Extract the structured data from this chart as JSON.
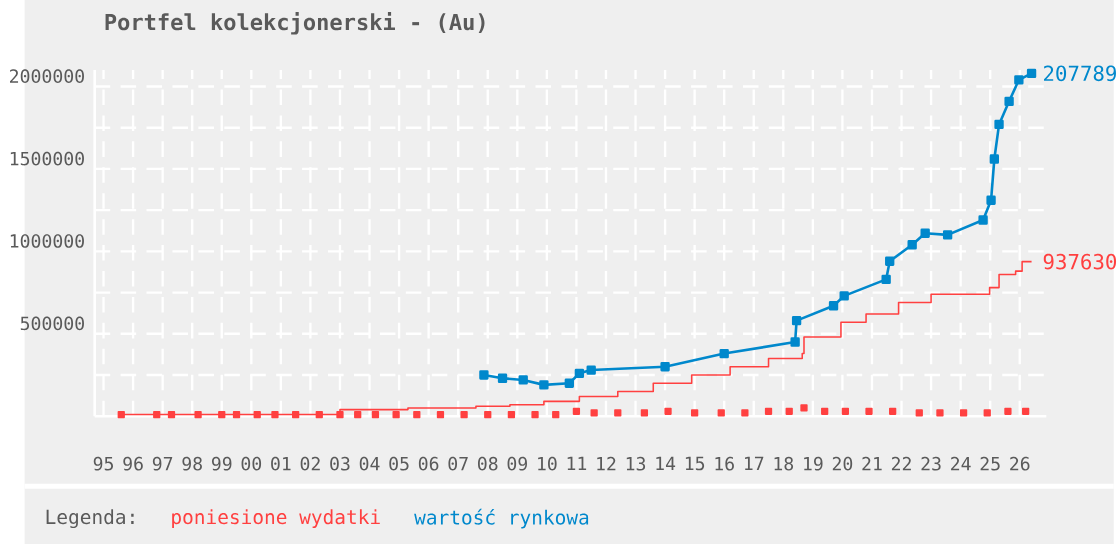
{
  "chart_data": {
    "type": "line",
    "title": "Portfel kolekcjonerski - (Au)",
    "legend_title": "Legenda:",
    "xlim": [
      1994.7,
      2026.9
    ],
    "ylim": [
      0,
      2100000
    ],
    "xticks": [
      {
        "value": 1995,
        "label": "95"
      },
      {
        "value": 1996,
        "label": "96"
      },
      {
        "value": 1997,
        "label": "97"
      },
      {
        "value": 1998,
        "label": "98"
      },
      {
        "value": 1999,
        "label": "99"
      },
      {
        "value": 2000,
        "label": "00"
      },
      {
        "value": 2001,
        "label": "01"
      },
      {
        "value": 2002,
        "label": "02"
      },
      {
        "value": 2003,
        "label": "03"
      },
      {
        "value": 2004,
        "label": "04"
      },
      {
        "value": 2005,
        "label": "05"
      },
      {
        "value": 2006,
        "label": "06"
      },
      {
        "value": 2007,
        "label": "07"
      },
      {
        "value": 2008,
        "label": "08"
      },
      {
        "value": 2009,
        "label": "09"
      },
      {
        "value": 2010,
        "label": "10"
      },
      {
        "value": 2011,
        "label": "11"
      },
      {
        "value": 2012,
        "label": "12"
      },
      {
        "value": 2013,
        "label": "13"
      },
      {
        "value": 2014,
        "label": "14"
      },
      {
        "value": 2015,
        "label": "15"
      },
      {
        "value": 2016,
        "label": "16"
      },
      {
        "value": 2017,
        "label": "17"
      },
      {
        "value": 2018,
        "label": "18"
      },
      {
        "value": 2019,
        "label": "19"
      },
      {
        "value": 2020,
        "label": "20"
      },
      {
        "value": 2021,
        "label": "21"
      },
      {
        "value": 2022,
        "label": "22"
      },
      {
        "value": 2023,
        "label": "23"
      },
      {
        "value": 2024,
        "label": "24"
      },
      {
        "value": 2025,
        "label": "25"
      },
      {
        "value": 2026,
        "label": "26"
      }
    ],
    "yticks": [
      {
        "value": 250000,
        "label": null
      },
      500000,
      {
        "value": 750000,
        "label": null
      },
      1000000,
      {
        "value": 1250000,
        "label": null
      },
      1500000,
      {
        "value": 1750000,
        "label": null
      },
      2000000
    ],
    "grid": true,
    "legend": "bottom",
    "series": [
      {
        "name": "poniesione wydatki",
        "type": "step",
        "marker": "none",
        "color": "#ff4040",
        "x": [
          1995.5,
          2003.0,
          2005.3,
          2007.6,
          2008.75,
          2009.9,
          2011.1,
          2012.4,
          2013.6,
          2014.9,
          2016.2,
          2017.5,
          2018.64,
          2018.7,
          2019.95,
          2020.8,
          2021.9,
          2023.0,
          2024.98,
          2025.3,
          2025.86,
          2026.08,
          2026.4
        ],
        "values": [
          10000,
          40000,
          50000,
          60000,
          70000,
          90000,
          120000,
          150000,
          200000,
          250000,
          300000,
          350000,
          380000,
          480000,
          570000,
          620000,
          690000,
          740000,
          780000,
          860000,
          880000,
          937630,
          937630
        ]
      },
      {
        "name": "wartość rynkowa",
        "marker": "square",
        "color": "#0088cc",
        "x": [
          2007.87,
          2008.5,
          2009.2,
          2009.9,
          2010.76,
          2011.1,
          2011.5,
          2014.0,
          2016.0,
          2018.4,
          2018.45,
          2019.7,
          2020.06,
          2021.48,
          2021.6,
          2022.36,
          2022.8,
          2023.56,
          2024.76,
          2025.03,
          2025.14,
          2025.3,
          2025.64,
          2025.97,
          2026.4
        ],
        "values": [
          250000,
          230000,
          220000,
          190000,
          200000,
          260000,
          280000,
          300000,
          380000,
          450000,
          580000,
          670000,
          730000,
          830000,
          940000,
          1040000,
          1110000,
          1100000,
          1190000,
          1310000,
          1560000,
          1770000,
          1910000,
          2040000,
          2080000
        ]
      },
      {
        "type": "scatter",
        "marker": "square",
        "color": "#ff4040",
        "x": [
          1995.6,
          1996.8,
          1997.3,
          1998.2,
          1999.0,
          1999.5,
          2000.2,
          2000.8,
          2001.5,
          2002.3,
          2003.0,
          2003.6,
          2004.2,
          2004.9,
          2005.6,
          2006.4,
          2007.2,
          2008.0,
          2008.8,
          2009.6,
          2010.3,
          2011.0,
          2011.6,
          2012.4,
          2013.3,
          2014.1,
          2015.0,
          2015.9,
          2016.7,
          2017.5,
          2018.2,
          2018.7,
          2019.4,
          2020.1,
          2020.9,
          2021.7,
          2022.6,
          2023.3,
          2024.1,
          2024.9,
          2025.6,
          2026.2
        ],
        "values": [
          10000,
          10000,
          10000,
          10000,
          10000,
          10000,
          10000,
          10000,
          10000,
          10000,
          10000,
          10000,
          10000,
          10000,
          10000,
          10000,
          10000,
          10000,
          10000,
          10000,
          10000,
          30000,
          20000,
          20000,
          20000,
          30000,
          20000,
          20000,
          20000,
          30000,
          30000,
          50000,
          30000,
          30000,
          30000,
          30000,
          20000,
          20000,
          20000,
          20000,
          30000,
          30000
        ]
      }
    ],
    "annotations": [
      {
        "text": "207789",
        "x": 2026.4,
        "y": 2080000
      },
      {
        "text": "937630",
        "x": 2026.4,
        "y": 937630
      }
    ]
  }
}
